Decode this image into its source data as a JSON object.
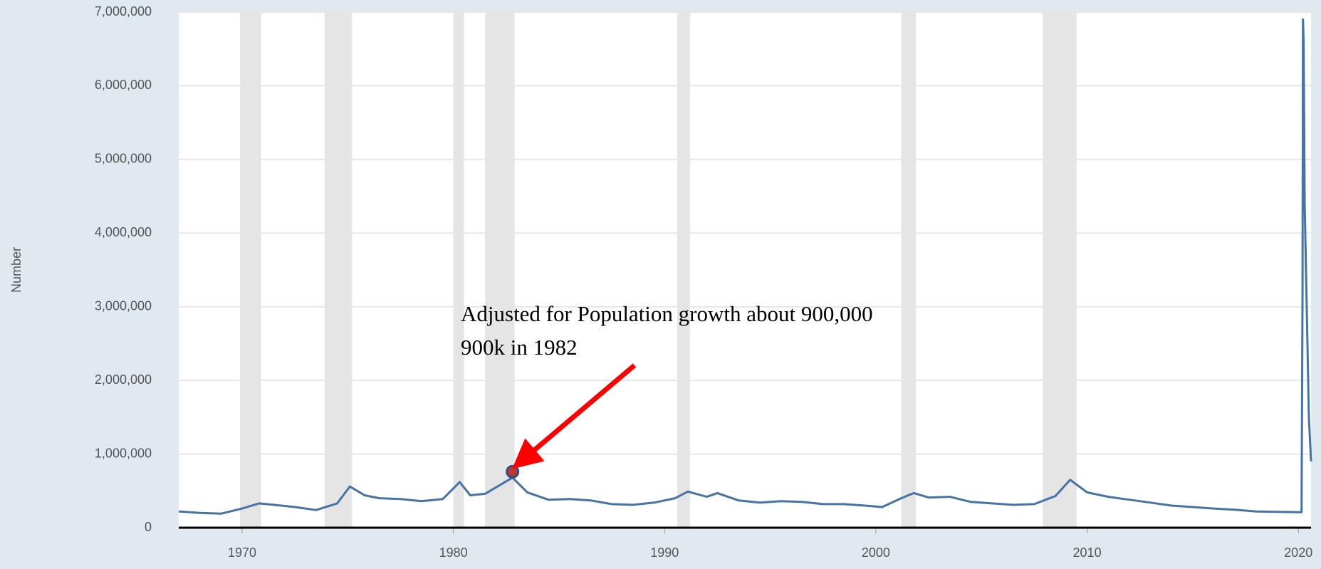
{
  "chart_data": {
    "type": "line",
    "y_label": "Number",
    "color": "#4572a7",
    "grid": true,
    "xlim": [
      1967,
      2020.6
    ],
    "ylim": [
      0,
      7000000
    ],
    "xticks": [
      1970,
      1980,
      1990,
      2000,
      2010,
      2020
    ],
    "yticks": [
      0,
      {
        "value": 1000000,
        "label": "1,000,000"
      },
      {
        "value": 2000000,
        "label": "2,000,000"
      },
      {
        "value": 3000000,
        "label": "3,000,000"
      },
      {
        "value": 4000000,
        "label": "4,000,000"
      },
      {
        "value": 5000000,
        "label": "5,000,000"
      },
      {
        "value": 6000000,
        "label": "6,000,000"
      },
      {
        "value": 7000000,
        "label": "7,000,000"
      }
    ],
    "recessions": [
      [
        1969.9,
        1970.9
      ],
      [
        1973.9,
        1975.2
      ],
      [
        1980.0,
        1980.5
      ],
      [
        1981.5,
        1982.9
      ],
      [
        1990.6,
        1991.2
      ],
      [
        2001.2,
        2001.9
      ],
      [
        2007.9,
        2009.5
      ]
    ],
    "x": [
      1967,
      1968,
      1969,
      1970,
      1970.8,
      1971.5,
      1972.5,
      1973.5,
      1974.5,
      1975.1,
      1975.8,
      1976.5,
      1977.5,
      1978.5,
      1979.5,
      1980.3,
      1980.8,
      1981.5,
      1982.8,
      1983.5,
      1984.5,
      1985.5,
      1986.5,
      1987.5,
      1988.5,
      1989.5,
      1990.5,
      1991.1,
      1992,
      1992.5,
      1993.5,
      1994.5,
      1995.5,
      1996.5,
      1997.5,
      1998.5,
      1999.5,
      2000.3,
      2001.2,
      2001.8,
      2002.5,
      2003.5,
      2004.5,
      2005.5,
      2006.5,
      2007.5,
      2008.5,
      2009.2,
      2010,
      2011,
      2012,
      2013,
      2014,
      2015,
      2016,
      2017,
      2018,
      2019,
      2020.15,
      2020.2,
      2020.22,
      2020.25,
      2020.3,
      2020.5,
      2020.6
    ],
    "values": [
      220000,
      200000,
      190000,
      260000,
      330000,
      310000,
      280000,
      240000,
      330000,
      560000,
      440000,
      400000,
      390000,
      360000,
      390000,
      620000,
      440000,
      460000,
      680000,
      480000,
      380000,
      390000,
      370000,
      320000,
      310000,
      340000,
      400000,
      490000,
      420000,
      470000,
      370000,
      340000,
      360000,
      350000,
      320000,
      320000,
      300000,
      280000,
      400000,
      470000,
      410000,
      420000,
      350000,
      330000,
      310000,
      320000,
      430000,
      650000,
      480000,
      420000,
      380000,
      340000,
      300000,
      280000,
      260000,
      245000,
      220000,
      215000,
      210000,
      3300000,
      6900000,
      6600000,
      4400000,
      1500000,
      900000
    ],
    "annotation": {
      "text": [
        "Adjusted for Population growth about 900,000",
        "900k in 1982"
      ],
      "point": {
        "x": 1982.8,
        "y": 760000
      }
    }
  }
}
